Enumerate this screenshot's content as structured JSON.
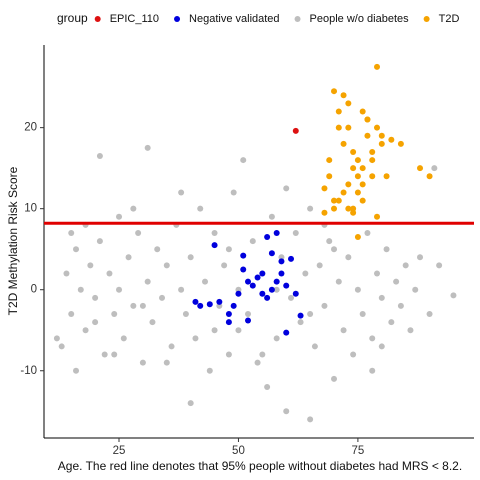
{
  "chart_data": {
    "type": "scatter",
    "xlabel": "Age. The red line denotes that 95% people without diabetes had MRS < 8.2.",
    "ylabel": "T2D Methylation Risk Score",
    "legend_title": "group",
    "legend_position": "top",
    "xlim": [
      9.3,
      99.3
    ],
    "ylim": [
      -18.3,
      30.2
    ],
    "xticks": [
      25,
      50,
      75
    ],
    "yticks": [
      -10,
      0,
      10,
      20
    ],
    "hline": {
      "value": 8.2,
      "color": "#e00000"
    },
    "series": [
      {
        "name": "EPIC_110",
        "color": "#dd1111",
        "x": [
          62
        ],
        "values": [
          19.6
        ]
      },
      {
        "name": "Negative validated",
        "color": "#0000dd",
        "x": [
          41,
          42,
          44,
          45,
          46,
          48,
          48,
          49,
          50,
          51,
          51,
          52,
          53,
          54,
          55,
          55,
          56,
          56,
          57,
          57,
          58,
          58,
          59,
          59,
          60,
          60,
          61,
          62,
          63,
          52
        ],
        "values": [
          -1.5,
          -2,
          -1.8,
          5.5,
          -1.5,
          -3,
          -4,
          -2,
          -0.5,
          4.2,
          2.5,
          1,
          0.5,
          1.5,
          2,
          -0.5,
          6.5,
          -1,
          4.5,
          0,
          7,
          1,
          3.5,
          2,
          -5.3,
          0.5,
          3.8,
          -0.5,
          -3.2,
          -3.8
        ]
      },
      {
        "name": "People w/o diabetes",
        "color": "#bebebe",
        "x": [
          13,
          14,
          15,
          16,
          16,
          17,
          18,
          18,
          19,
          20,
          21,
          21,
          22,
          23,
          24,
          25,
          25,
          26,
          27,
          28,
          29,
          30,
          31,
          31,
          32,
          33,
          34,
          35,
          36,
          37,
          38,
          39,
          40,
          40,
          41,
          42,
          43,
          44,
          45,
          46,
          47,
          48,
          49,
          50,
          50,
          51,
          52,
          53,
          54,
          55,
          56,
          57,
          58,
          59,
          60,
          60,
          61,
          62,
          63,
          64,
          65,
          65,
          66,
          67,
          68,
          69,
          70,
          71,
          72,
          73,
          74,
          75,
          76,
          77,
          78,
          79,
          80,
          81,
          82,
          83,
          84,
          85,
          86,
          87,
          88,
          90,
          91,
          92,
          95,
          20,
          30,
          35,
          45,
          55,
          65,
          70,
          80,
          15,
          28,
          38,
          48,
          58,
          68,
          78,
          12,
          24
        ],
        "values": [
          -7,
          2,
          -3,
          5,
          -10,
          0,
          8,
          -5,
          3,
          -1,
          16.5,
          6,
          -8,
          2,
          -3,
          9,
          0,
          -6,
          4,
          -2,
          7,
          -9,
          17.5,
          1,
          -4,
          5,
          -1,
          3,
          -7,
          8,
          0,
          -3,
          -14,
          4,
          -6,
          10,
          1,
          -10,
          7,
          -2,
          3,
          -8,
          12,
          0,
          -5,
          16,
          -3,
          6,
          -9,
          2,
          -12,
          9,
          -6,
          4,
          -15,
          12.5,
          -1,
          7,
          -4,
          2,
          -16,
          10,
          -7,
          3,
          -2,
          6,
          -11,
          1,
          -5,
          4,
          -8,
          0,
          -3,
          7,
          -6,
          2,
          -1,
          5,
          -4,
          1,
          -2,
          3,
          -5,
          0,
          4,
          -3,
          15,
          3,
          -0.7,
          -4,
          -2,
          -9,
          -5,
          -8,
          -3,
          5,
          -7,
          7,
          10,
          12,
          5,
          0,
          8,
          -10,
          -6,
          -8
        ]
      },
      {
        "name": "T2D",
        "color": "#f5a300",
        "x": [
          68,
          69,
          70,
          71,
          72,
          73,
          74,
          75,
          76,
          77,
          78,
          79,
          80,
          81,
          82,
          70,
          72,
          74,
          76,
          78,
          71,
          73,
          75,
          77,
          79,
          69,
          71,
          73,
          75,
          77,
          74,
          76,
          78,
          80,
          72,
          74,
          76,
          88,
          90,
          84,
          79,
          73,
          68,
          70,
          75
        ],
        "values": [
          9.5,
          16,
          24.5,
          22,
          18,
          20,
          15,
          14,
          22,
          19,
          16,
          27.5,
          18,
          14,
          18.5,
          11,
          12,
          10,
          13,
          17,
          20,
          23,
          16,
          21,
          20,
          14,
          11,
          13,
          12,
          21,
          9.5,
          15,
          14,
          19,
          24,
          17,
          11,
          15,
          14,
          18,
          9,
          10,
          12.5,
          10,
          6.5
        ]
      }
    ]
  }
}
